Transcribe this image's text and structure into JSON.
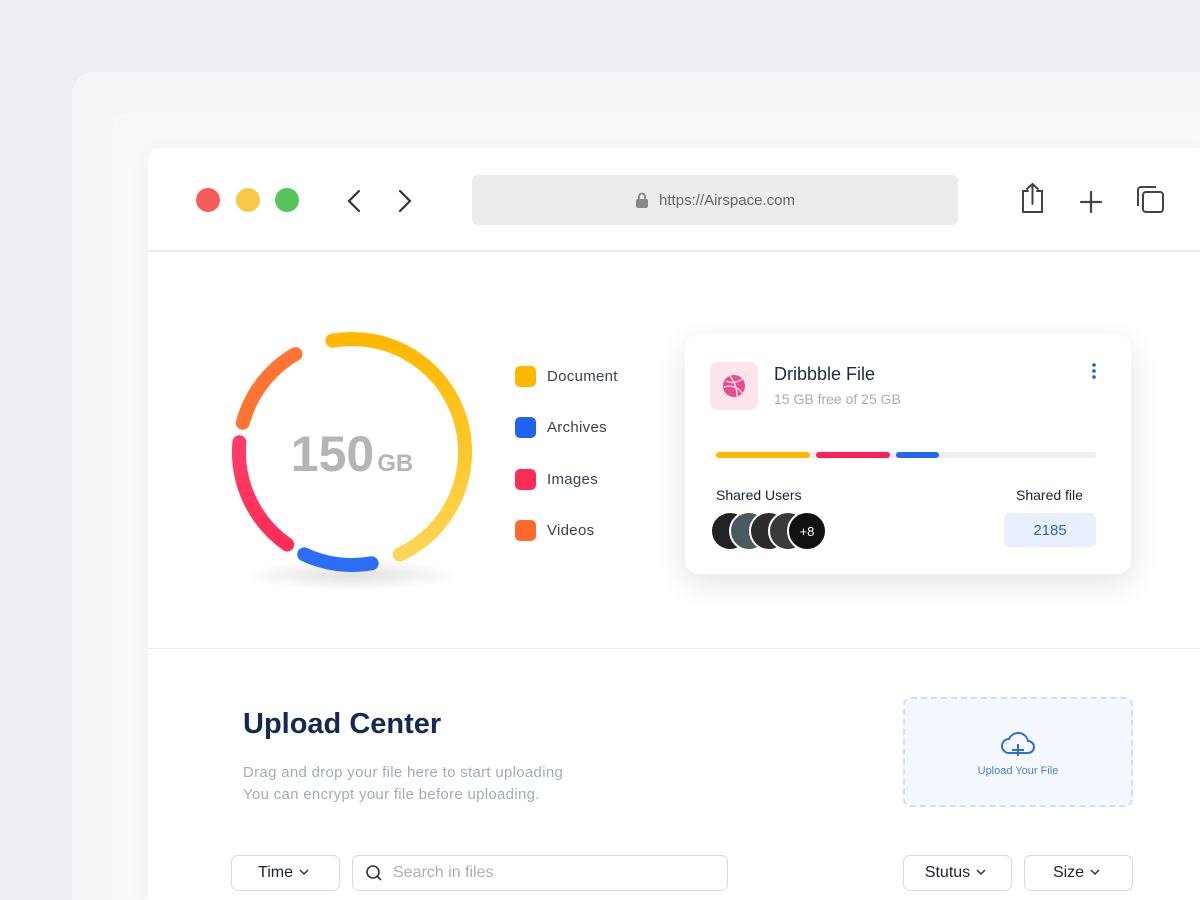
{
  "browser": {
    "url": "https://Airspace.com"
  },
  "storage": {
    "total_value": "150",
    "total_unit": "GB",
    "legend": [
      "Document",
      "Archives",
      "Images",
      "Videos"
    ]
  },
  "file_card": {
    "title": "Dribbble File",
    "subtitle": "15 GB free of 25 GB",
    "shared_users_label": "Shared Users",
    "shared_users_more": "+8",
    "shared_file_label": "Shared file",
    "shared_file_count": "2185"
  },
  "upload": {
    "title": "Upload Center",
    "description": [
      "Drag and drop your file here to start uploading",
      "You can encrypt your file before uploading."
    ],
    "button": "Upload Your File"
  },
  "filters": {
    "time": "Time",
    "search_placeholder": "Search in files",
    "status": "Stutus",
    "size": "Size"
  }
}
